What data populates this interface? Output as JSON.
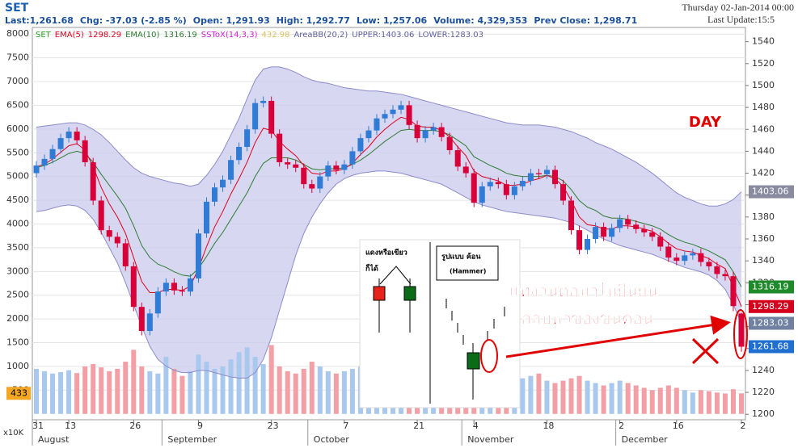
{
  "header": {
    "symbol": "SET",
    "stats": [
      "Last:1,261.68",
      "Chg: -37.03 (-2.85 %)",
      "Open: 1,291.93",
      "High: 1,292.77",
      "Low: 1,257.06",
      "Volume: 4,329,353",
      "Prev Close: 1,298.71"
    ],
    "date": "Thursday 02-Jan-2014 00:00",
    "update": "Last Update:15:5"
  },
  "chart_data": {
    "type": "candlestick",
    "legend": {
      "ema5": "EMA(5)",
      "ema10": "EMA(10)",
      "sstox": "SSToX(14,3,3)",
      "sstox_value": 432.98,
      "bb": "AreaBB(20,2)",
      "upper": "UPPER:",
      "lower": "LOWER:"
    },
    "categories": [
      "31",
      null,
      null,
      null,
      "13",
      null,
      null,
      null,
      null,
      null,
      null,
      null,
      "26",
      null,
      null,
      null,
      null,
      null,
      null,
      null,
      "9",
      null,
      null,
      null,
      null,
      null,
      null,
      null,
      null,
      "23",
      null,
      null,
      null,
      null,
      null,
      null,
      null,
      null,
      "7",
      null,
      null,
      null,
      null,
      null,
      null,
      null,
      null,
      "21",
      null,
      null,
      null,
      null,
      null,
      null,
      "4",
      null,
      null,
      null,
      null,
      null,
      null,
      null,
      null,
      "18",
      null,
      null,
      null,
      null,
      null,
      null,
      null,
      null,
      "2",
      null,
      null,
      null,
      null,
      null,
      null,
      "16",
      null,
      null,
      null,
      null,
      null,
      null,
      null,
      "2"
    ],
    "months": [
      "August",
      null,
      null,
      null,
      null,
      null,
      null,
      null,
      null,
      null,
      null,
      null,
      null,
      null,
      null,
      null,
      "September",
      null,
      null,
      null,
      null,
      null,
      null,
      null,
      null,
      null,
      null,
      null,
      null,
      null,
      null,
      null,
      null,
      null,
      "October",
      null,
      null,
      null,
      null,
      null,
      null,
      null,
      null,
      null,
      null,
      null,
      null,
      null,
      null,
      null,
      null,
      null,
      null,
      "November",
      null,
      null,
      null,
      null,
      null,
      null,
      null,
      null,
      null,
      null,
      null,
      null,
      null,
      null,
      null,
      null,
      null,
      null,
      "December",
      null,
      null,
      null,
      null,
      null,
      null,
      null,
      null,
      null,
      null,
      null,
      null,
      null,
      null,
      null
    ],
    "open": [
      1420,
      1427,
      1433,
      1442,
      1452,
      1458,
      1450,
      1430,
      1395,
      1368,
      1362,
      1356,
      1335,
      1298,
      1276,
      1292,
      1312,
      1320,
      1313,
      1312,
      1324,
      1365,
      1394,
      1407,
      1414,
      1432,
      1444,
      1460,
      1484,
      1486,
      1456,
      1430,
      1428,
      1425,
      1410,
      1406,
      1417,
      1427,
      1423,
      1428,
      1440,
      1452,
      1459,
      1470,
      1474,
      1478,
      1482,
      1464,
      1452,
      1459,
      1462,
      1453,
      1441,
      1426,
      1420,
      1393,
      1408,
      1412,
      1410,
      1400,
      1408,
      1413,
      1420,
      1419,
      1423,
      1410,
      1395,
      1368,
      1350,
      1360,
      1371,
      1362,
      1370,
      1378,
      1373,
      1369,
      1366,
      1362,
      1353,
      1343,
      1340,
      1345,
      1347,
      1339,
      1335,
      1328,
      1326,
      1291.93
    ],
    "high": [
      1431,
      1437,
      1446,
      1456,
      1462,
      1462,
      1454,
      1434,
      1399,
      1372,
      1366,
      1360,
      1339,
      1302,
      1296,
      1316,
      1324,
      1324,
      1317,
      1328,
      1369,
      1398,
      1411,
      1418,
      1436,
      1448,
      1464,
      1488,
      1490,
      1490,
      1460,
      1434,
      1432,
      1429,
      1414,
      1421,
      1431,
      1431,
      1432,
      1444,
      1456,
      1463,
      1474,
      1478,
      1482,
      1486,
      1486,
      1468,
      1463,
      1466,
      1466,
      1457,
      1445,
      1430,
      1424,
      1412,
      1416,
      1416,
      1414,
      1412,
      1417,
      1424,
      1424,
      1427,
      1427,
      1414,
      1399,
      1372,
      1364,
      1375,
      1375,
      1374,
      1382,
      1382,
      1377,
      1373,
      1370,
      1366,
      1357,
      1347,
      1349,
      1351,
      1351,
      1343,
      1339,
      1332,
      1330,
      1292.77
    ],
    "low": [
      1416,
      1423,
      1429,
      1438,
      1448,
      1446,
      1426,
      1391,
      1364,
      1358,
      1352,
      1331,
      1294,
      1272,
      1272,
      1288,
      1308,
      1309,
      1308,
      1308,
      1320,
      1361,
      1390,
      1403,
      1410,
      1428,
      1440,
      1456,
      1480,
      1452,
      1426,
      1424,
      1421,
      1406,
      1402,
      1402,
      1413,
      1419,
      1419,
      1424,
      1436,
      1448,
      1455,
      1466,
      1470,
      1474,
      1460,
      1448,
      1448,
      1455,
      1449,
      1437,
      1422,
      1416,
      1389,
      1389,
      1404,
      1406,
      1396,
      1396,
      1404,
      1409,
      1415,
      1415,
      1406,
      1391,
      1364,
      1346,
      1346,
      1356,
      1358,
      1358,
      1366,
      1369,
      1365,
      1362,
      1358,
      1349,
      1339,
      1336,
      1336,
      1341,
      1335,
      1331,
      1324,
      1322,
      1294,
      1257.06
    ],
    "close": [
      1427,
      1433,
      1442,
      1452,
      1458,
      1450,
      1430,
      1395,
      1368,
      1362,
      1356,
      1335,
      1298,
      1276,
      1292,
      1312,
      1320,
      1313,
      1312,
      1324,
      1365,
      1394,
      1407,
      1414,
      1432,
      1444,
      1460,
      1484,
      1486,
      1456,
      1430,
      1428,
      1425,
      1410,
      1406,
      1417,
      1427,
      1423,
      1428,
      1440,
      1452,
      1459,
      1470,
      1474,
      1478,
      1482,
      1464,
      1452,
      1459,
      1462,
      1453,
      1441,
      1426,
      1420,
      1393,
      1408,
      1412,
      1410,
      1400,
      1408,
      1413,
      1420,
      1419,
      1423,
      1410,
      1395,
      1368,
      1350,
      1360,
      1371,
      1362,
      1370,
      1378,
      1373,
      1369,
      1366,
      1362,
      1353,
      1343,
      1340,
      1345,
      1347,
      1339,
      1335,
      1328,
      1326,
      1298.71,
      1261.68
    ],
    "ema5": [
      1426,
      1428,
      1433,
      1439,
      1445,
      1447,
      1441,
      1426,
      1407,
      1392,
      1380,
      1365,
      1343,
      1321,
      1311,
      1311,
      1314,
      1314,
      1313,
      1317,
      1333,
      1353,
      1371,
      1385,
      1401,
      1415,
      1430,
      1448,
      1461,
      1459,
      1449,
      1442,
      1436,
      1427,
      1420,
      1419,
      1422,
      1422,
      1424,
      1429,
      1437,
      1444,
      1453,
      1460,
      1466,
      1471,
      1469,
      1463,
      1462,
      1462,
      1459,
      1453,
      1444,
      1436,
      1422,
      1417,
      1415,
      1413,
      1409,
      1409,
      1410,
      1413,
      1415,
      1418,
      1415,
      1408,
      1395,
      1380,
      1373,
      1372,
      1369,
      1369,
      1372,
      1372,
      1371,
      1369,
      1367,
      1362,
      1356,
      1351,
      1349,
      1348,
      1345,
      1342,
      1337,
      1333,
      1316,
      1298.29
    ],
    "ema10": [
      1425,
      1427,
      1430,
      1434,
      1438,
      1440,
      1438,
      1430,
      1419,
      1409,
      1399,
      1388,
      1372,
      1354,
      1343,
      1337,
      1334,
      1330,
      1327,
      1326,
      1333,
      1344,
      1356,
      1366,
      1378,
      1390,
      1402,
      1417,
      1429,
      1434,
      1434,
      1434,
      1432,
      1428,
      1424,
      1423,
      1424,
      1424,
      1425,
      1428,
      1432,
      1437,
      1443,
      1449,
      1454,
      1459,
      1460,
      1459,
      1459,
      1459,
      1458,
      1455,
      1450,
      1445,
      1435,
      1431,
      1427,
      1424,
      1420,
      1418,
      1417,
      1417,
      1417,
      1418,
      1417,
      1413,
      1405,
      1395,
      1389,
      1386,
      1381,
      1379,
      1379,
      1378,
      1376,
      1374,
      1372,
      1369,
      1364,
      1360,
      1357,
      1355,
      1352,
      1349,
      1345,
      1341,
      1330,
      1316.19
    ],
    "bb_upper": [
      1462,
      1463,
      1464,
      1465,
      1466,
      1466,
      1464,
      1460,
      1455,
      1448,
      1440,
      1432,
      1425,
      1420,
      1417,
      1415,
      1413,
      1411,
      1410,
      1408,
      1410,
      1418,
      1428,
      1440,
      1455,
      1470,
      1488,
      1505,
      1515,
      1517,
      1517,
      1515,
      1512,
      1508,
      1505,
      1503,
      1502,
      1500,
      1498,
      1497,
      1496,
      1495,
      1495,
      1494,
      1493,
      1492,
      1490,
      1488,
      1486,
      1484,
      1482,
      1480,
      1478,
      1476,
      1474,
      1472,
      1470,
      1468,
      1466,
      1465,
      1464,
      1464,
      1464,
      1463,
      1462,
      1460,
      1458,
      1455,
      1452,
      1448,
      1445,
      1442,
      1438,
      1434,
      1430,
      1425,
      1420,
      1414,
      1408,
      1402,
      1398,
      1395,
      1392,
      1390,
      1390,
      1392,
      1396,
      1403.06
    ],
    "bb_lower": [
      1385,
      1386,
      1388,
      1390,
      1391,
      1390,
      1386,
      1378,
      1366,
      1352,
      1338,
      1320,
      1300,
      1280,
      1262,
      1250,
      1244,
      1240,
      1238,
      1238,
      1240,
      1240,
      1238,
      1236,
      1234,
      1233,
      1233,
      1238,
      1250,
      1270,
      1295,
      1320,
      1345,
      1365,
      1380,
      1392,
      1402,
      1410,
      1415,
      1418,
      1420,
      1421,
      1422,
      1422,
      1421,
      1420,
      1418,
      1416,
      1414,
      1412,
      1410,
      1406,
      1402,
      1398,
      1394,
      1391,
      1389,
      1387,
      1385,
      1384,
      1383,
      1382,
      1381,
      1380,
      1379,
      1377,
      1375,
      1372,
      1368,
      1364,
      1360,
      1357,
      1354,
      1352,
      1350,
      1348,
      1346,
      1343,
      1340,
      1337,
      1334,
      1332,
      1330,
      1327,
      1322,
      1314,
      1300,
      1283.03
    ],
    "volume": [
      950,
      900,
      850,
      880,
      920,
      860,
      1000,
      1050,
      980,
      900,
      950,
      1100,
      1350,
      1000,
      900,
      850,
      1200,
      950,
      800,
      900,
      1250,
      1100,
      950,
      1000,
      1150,
      1300,
      1400,
      1200,
      1050,
      1450,
      1000,
      900,
      850,
      950,
      1100,
      1000,
      900,
      850,
      900,
      950,
      1000,
      1050,
      950,
      900,
      1000,
      1100,
      900,
      950,
      850,
      800,
      900,
      1000,
      950,
      850,
      900,
      800,
      750,
      700,
      650,
      700,
      750,
      800,
      850,
      700,
      650,
      700,
      750,
      800,
      700,
      650,
      600,
      650,
      700,
      650,
      600,
      550,
      500,
      550,
      600,
      550,
      500,
      450,
      500,
      480,
      450,
      430,
      520,
      433
    ],
    "ylim": [
      1195,
      1553
    ],
    "yticks": [
      1200,
      1220,
      1240,
      1260,
      1280,
      1300,
      1320,
      1340,
      1360,
      1380,
      1400,
      1420,
      1440,
      1460,
      1480,
      1500,
      1520,
      1540
    ],
    "y2lim": [
      -123,
      8140
    ],
    "y2ticks": [
      500,
      1000,
      1500,
      2000,
      2500,
      3000,
      3500,
      4000,
      4500,
      5000,
      5500,
      6000,
      6500,
      7000,
      7500,
      8000
    ],
    "y2_unit": "x10K",
    "grid": true,
    "colors": {
      "up": "#2f7bd6",
      "down": "#d9003a",
      "volume_up": "#a8c8ee",
      "volume_down": "#f2a0a6",
      "ema5": "#e0001c",
      "ema10": "#2e7d32",
      "band": "#c9c9ee",
      "band_line": "#8c8cc8"
    },
    "annotations": {
      "period": "DAY",
      "note_line1": "แท่งวันต่อมาไม่ยืนยัน",
      "note_line2": "กลับหัวของขุนค้อน"
    }
  },
  "inset": {
    "left_title": "แดงหรือเขียว",
    "left_sub": "ก็ได้",
    "right_title": "รูปแบบ ค้อน",
    "right_sub": "(Hammer)"
  }
}
